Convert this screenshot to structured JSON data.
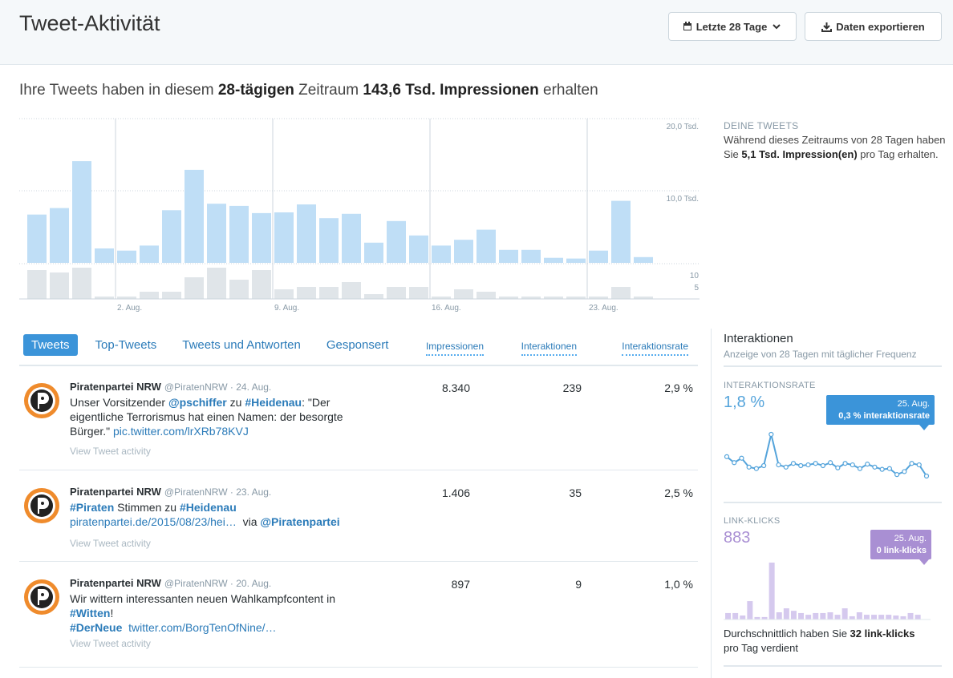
{
  "header": {
    "title": "Tweet-Aktivität",
    "date_button": "Letzte 28 Tage",
    "export_button": "Daten exportieren"
  },
  "summary": [
    {
      "text": "Ihre Tweets haben in diesem "
    },
    {
      "text": "28-tägigen",
      "bold": true
    },
    {
      "text": " Zeitraum "
    },
    {
      "text": "143,6 Tsd. Impressionen",
      "bold": true
    },
    {
      "text": " erhalten"
    }
  ],
  "sidebar": {
    "title": "DEINE TWEETS",
    "text": [
      {
        "text": "Während dieses Zeitraums von 28 Tagen haben Sie "
      },
      {
        "text": "5,1 Tsd. Impression(en)",
        "bold": true
      },
      {
        "text": " pro Tag erhalten."
      }
    ]
  },
  "chart_data": [
    {
      "type": "bar",
      "categories": [
        null,
        null,
        null,
        null,
        "2. Aug.",
        null,
        null,
        null,
        null,
        null,
        null,
        "9. Aug.",
        null,
        null,
        null,
        null,
        null,
        null,
        "16. Aug.",
        null,
        null,
        null,
        null,
        null,
        null,
        "23. Aug.",
        null,
        null
      ],
      "values": [
        6700,
        7600,
        14100,
        2000,
        1700,
        2400,
        7300,
        12900,
        8200,
        7900,
        6900,
        7000,
        8100,
        6200,
        6800,
        2800,
        5800,
        3800,
        2400,
        3200,
        4600,
        1800,
        1800,
        700,
        600,
        1700,
        8600,
        800
      ],
      "color": "#bfdef6",
      "ylim": [
        0,
        20000
      ],
      "yticks": [
        {
          "value": 20000,
          "label": "20,0 Tsd."
        },
        {
          "value": 10000,
          "label": "10,0 Tsd."
        }
      ],
      "grid": true
    },
    {
      "type": "bar",
      "values": [
        12,
        11,
        13,
        1,
        1,
        3,
        3,
        9,
        13,
        8,
        12,
        4,
        5,
        5,
        7,
        2,
        5,
        5,
        1,
        4,
        3,
        1,
        1,
        1,
        1,
        1,
        5,
        1
      ],
      "color": "#e0e5e9",
      "ylim": [
        0,
        14
      ],
      "yticks": [
        10,
        5
      ]
    },
    {
      "type": "line",
      "title": "INTERAKTIONSRATE",
      "headline": "1,8 %",
      "tooltip": {
        "date": "25. Aug.",
        "text": "0,3 % interaktionsrate"
      },
      "values": [
        2.9,
        2.1,
        2.7,
        1.5,
        1.3,
        1.7,
        5.9,
        1.8,
        1.5,
        2.0,
        1.7,
        1.8,
        2.0,
        1.7,
        2.1,
        1.4,
        2.0,
        1.8,
        1.3,
        1.9,
        1.5,
        1.2,
        1.3,
        0.5,
        0.9,
        2.0,
        1.8,
        0.3
      ],
      "color": "#55a4db"
    },
    {
      "type": "bar",
      "title": "LINK-KLICKS",
      "headline": "883",
      "tooltip": {
        "date": "25. Aug.",
        "text": "0 link-klicks"
      },
      "values": [
        26,
        26,
        16,
        74,
        10,
        10,
        229,
        29,
        45,
        35,
        26,
        19,
        26,
        26,
        29,
        19,
        45,
        13,
        29,
        19,
        19,
        19,
        19,
        16,
        13,
        26,
        19,
        0
      ],
      "color": "#d5c9ee"
    }
  ],
  "tabs": [
    "Tweets",
    "Top-Tweets",
    "Tweets und Antworten",
    "Gesponsert"
  ],
  "active_tab": 0,
  "columns": [
    "Impressionen",
    "Interaktionen",
    "Interaktionsrate"
  ],
  "tweets": [
    {
      "name": "Piratenpartei NRW",
      "meta": "@PiratenNRW · 24. Aug.",
      "text": [
        {
          "text": "Unser Vorsitzender "
        },
        {
          "text": "@pschiffer",
          "link": true
        },
        {
          "text": " zu "
        },
        {
          "text": "#Heidenau",
          "link": true
        },
        {
          "text": ": \"Der eigentliche Terrorismus hat einen Namen: der besorgte Bürger.\" "
        },
        {
          "text": "pic.twitter.com/lrXRb78KVJ",
          "link": true
        }
      ],
      "activity": "View Tweet activity",
      "impressions": "8.340",
      "interactions": "239",
      "rate": "2,9 %"
    },
    {
      "name": "Piratenpartei NRW",
      "meta": "@PiratenNRW · 23. Aug.",
      "text": [
        {
          "text": "#Piraten",
          "link": true
        },
        {
          "text": " Stimmen zu "
        },
        {
          "text": "#Heidenau",
          "link": true
        },
        {
          "text": " "
        },
        {
          "text": "piratenpartei.de/2015/08/23/hei…",
          "link": true
        },
        {
          "text": "  via "
        },
        {
          "text": "@Piratenpartei",
          "link": true
        }
      ],
      "activity": "View Tweet activity",
      "impressions": "1.406",
      "interactions": "35",
      "rate": "2,5 %"
    },
    {
      "name": "Piratenpartei NRW",
      "meta": "@PiratenNRW · 20. Aug.",
      "text": [
        {
          "text": "Wir wittern interessanten neuen Wahlkampfcontent in "
        },
        {
          "text": "#Witten",
          "link": true
        },
        {
          "text": "!\n"
        },
        {
          "text": "#DerNeue",
          "link": true
        },
        {
          "text": "  "
        },
        {
          "text": "twitter.com/BorgTenOfNine/…",
          "link": true
        }
      ],
      "activity": "View Tweet activity",
      "impressions": "897",
      "interactions": "9",
      "rate": "1,0 %"
    }
  ],
  "interactions_panel": {
    "title": "Interaktionen",
    "subtitle": "Anzeige von 28 Tagen mit täglicher Frequenz",
    "footer": [
      {
        "text": "Durchschnittlich haben Sie "
      },
      {
        "text": "32 link-klicks",
        "bold": true
      },
      {
        "text": " pro Tag verdient"
      }
    ]
  }
}
